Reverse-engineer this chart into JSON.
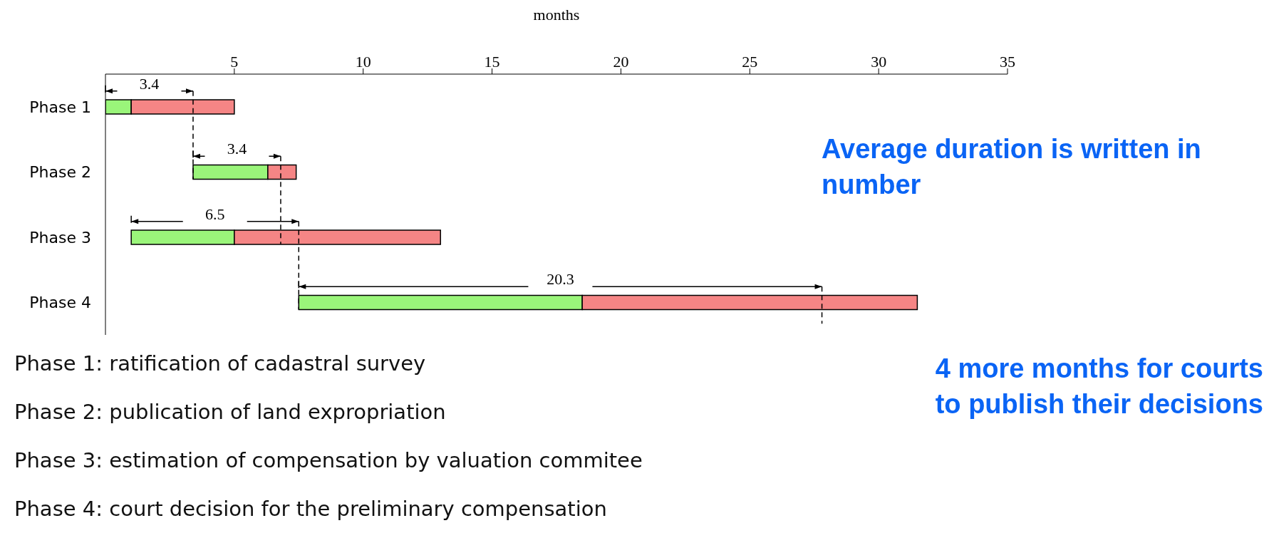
{
  "chart_data": {
    "type": "bar",
    "orientation": "horizontal",
    "xlabel": "months",
    "categories": [
      "Phase 1",
      "Phase 2",
      "Phase 3",
      "Phase 4"
    ],
    "series": [
      {
        "color": "#9af57a",
        "base": [
          0,
          3.4,
          1,
          7.5
        ],
        "values": [
          1,
          2.9,
          4,
          11
        ]
      },
      {
        "color": "#f58585",
        "base": [
          1,
          6.3,
          5,
          18.5
        ],
        "values": [
          4,
          1.1,
          8,
          13
        ]
      }
    ],
    "xlim": [
      0,
      35
    ],
    "xticks": [
      5,
      10,
      15,
      20,
      25,
      30,
      35
    ],
    "annotations": [
      "3.4",
      "3.4",
      "6.5",
      "20.3",
      "Phase 1: ratification of cadastral survey",
      "Phase 2: publication of land expropriation",
      "Phase 3: estimation of compensation by valuation commitee",
      "Phase 4: court decision for the preliminary compensation",
      "Average duration is written in number",
      "4 more months for courts to publish their decisions"
    ]
  }
}
